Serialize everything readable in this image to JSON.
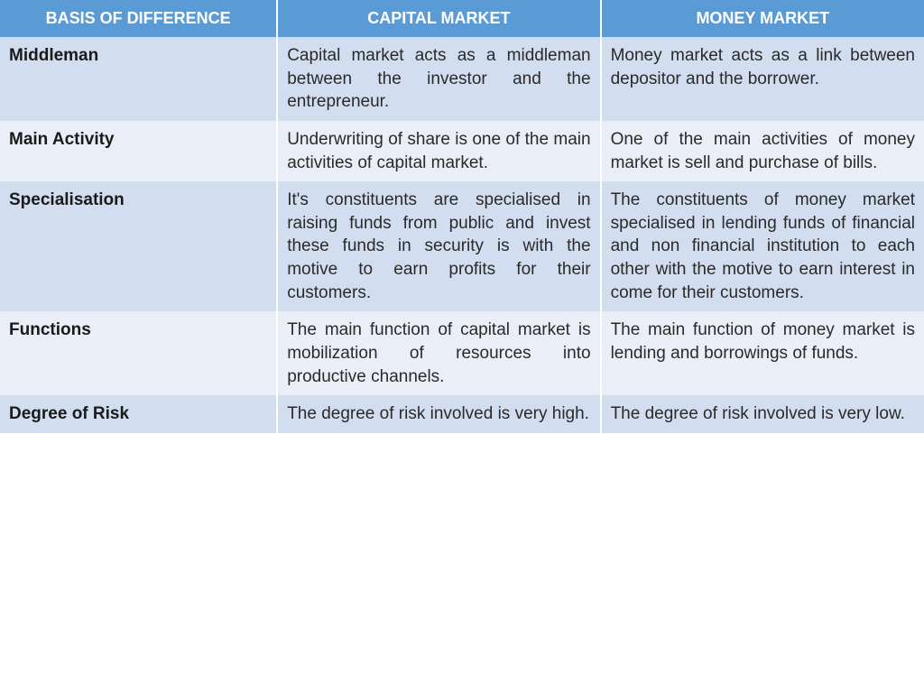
{
  "table": {
    "type": "table",
    "header_bg": "#5b9bd5",
    "header_text_color": "#ffffff",
    "row_odd_bg": "#d2deef",
    "row_even_bg": "#eaeff7",
    "body_text_color": "#2a2a2a",
    "basis_font_weight": "bold",
    "content_align": "justify",
    "column_widths": [
      "30%",
      "35%",
      "35%"
    ],
    "header_fontsize": 18,
    "body_fontsize": 19,
    "columns": [
      "BASIS OF DIFFERENCE",
      "CAPITAL MARKET",
      "MONEY MARKET"
    ],
    "rows": [
      {
        "basis": "Middleman",
        "capital": "Capital market acts as a middleman between the investor and the entrepreneur.",
        "money": "Money market acts as a link between depositor and the borrower."
      },
      {
        "basis": "Main Activity",
        "capital": "Underwriting of share is one of the main activities of capital market.",
        "money": "One of the main activities of money market is sell and purchase of bills."
      },
      {
        "basis": "Specialisation",
        "capital": "It's constituents are specialised in raising funds from public and invest these funds in security is with the motive to earn profits for their customers.",
        "money": "The constituents of money market specialised in lending funds of financial and non financial institution to each other with the motive to earn interest in come for their customers."
      },
      {
        "basis": "Functions",
        "capital": "The main function of capital market is mobilization of resources into productive channels.",
        "money": "The main function of money market is lending and borrowings of funds."
      },
      {
        "basis": "Degree of Risk",
        "capital": "The degree of risk involved is very high.",
        "money": "The degree of risk involved is very low."
      }
    ]
  }
}
